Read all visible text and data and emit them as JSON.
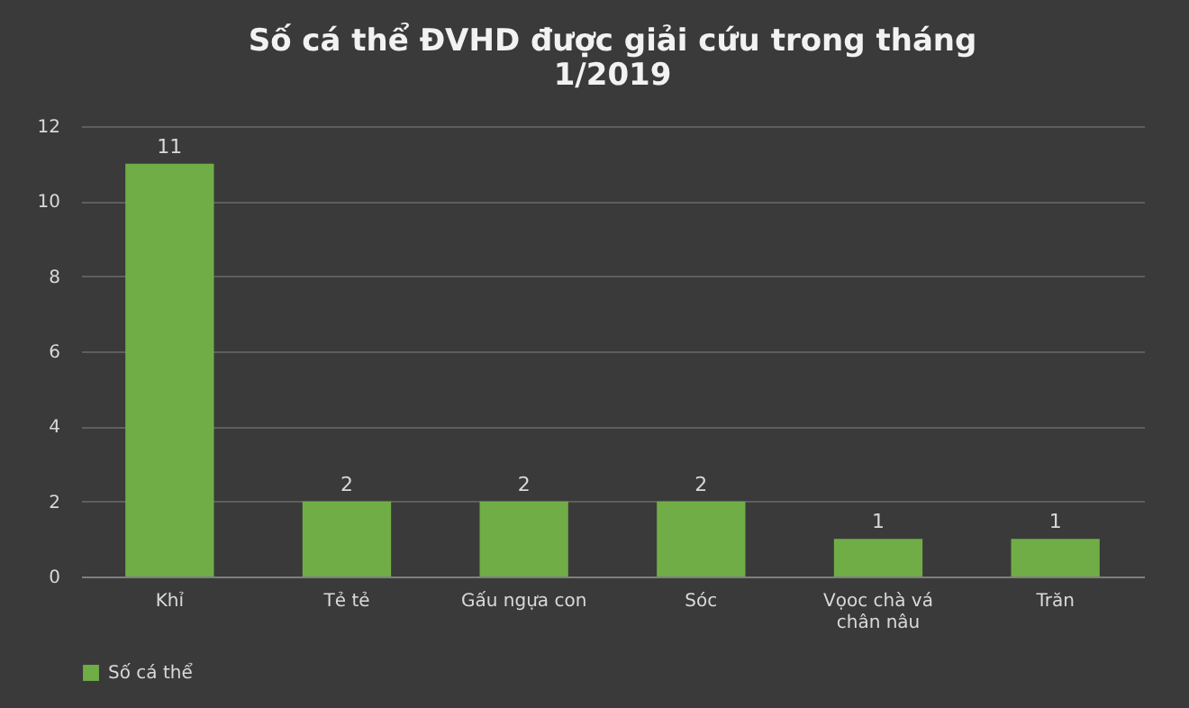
{
  "chart_data": {
    "type": "bar",
    "title": "Số cá thể ĐVHD được giải cứu trong tháng 1/2019",
    "categories": [
      "Khỉ",
      "Tẻ tẻ",
      "Gấu ngựa con",
      "Sóc",
      "Vọoc chà vá chân nâu",
      "Trăn"
    ],
    "series": [
      {
        "name": "Số cá thể",
        "color": "#70ad47",
        "values": [
          11,
          2,
          2,
          2,
          1,
          1
        ]
      }
    ],
    "ylim": [
      0,
      12
    ],
    "yticks": [
      0,
      2,
      4,
      6,
      8,
      10,
      12
    ],
    "grid": "y",
    "legend": "bottom",
    "data_labels": true
  }
}
